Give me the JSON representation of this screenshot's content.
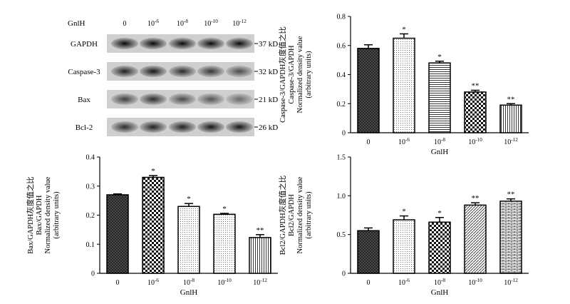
{
  "blot": {
    "header": "GnlH",
    "lanes": [
      "0",
      "10-6",
      "10-8",
      "10-10",
      "10-12"
    ],
    "rows": [
      {
        "protein": "GAPDH",
        "size": "37 kD",
        "intensity": [
          0.95,
          0.95,
          0.95,
          0.95,
          0.95
        ]
      },
      {
        "protein": "Caspase-3",
        "size": "32 kD",
        "intensity": [
          0.85,
          0.9,
          0.8,
          0.75,
          0.65
        ]
      },
      {
        "protein": "Bax",
        "size": "21 kD",
        "intensity": [
          0.7,
          0.8,
          0.65,
          0.6,
          0.5
        ]
      },
      {
        "protein": "Bcl-2",
        "size": "26 kD",
        "intensity": [
          0.8,
          0.85,
          0.85,
          0.9,
          0.9
        ]
      }
    ]
  },
  "chart_data": [
    {
      "type": "bar",
      "panel": "caspase3",
      "categories": [
        "0",
        "10-6",
        "10-8",
        "10-10",
        "10-12"
      ],
      "values": [
        0.58,
        0.65,
        0.48,
        0.28,
        0.19
      ],
      "errors": [
        0.025,
        0.03,
        0.012,
        0.012,
        0.01
      ],
      "significance": [
        "",
        "*",
        "*",
        "**",
        "**"
      ],
      "patterns": [
        "cross",
        "dots",
        "hlines",
        "checker",
        "vlines"
      ],
      "ylabel_lines": [
        "Caspase-3/GAPDH灰度值之比",
        "Caspase-3/GAPDH",
        "Normalized density value",
        "(arbitrary units)"
      ],
      "xlabel": "GnlH",
      "ylim": [
        0,
        0.8
      ],
      "yticks": [
        "0",
        "0.2",
        "0.4",
        "0.6",
        "0.8"
      ]
    },
    {
      "type": "bar",
      "panel": "bax",
      "categories": [
        "0",
        "10-6",
        "10-8",
        "10-10",
        "10-12"
      ],
      "values": [
        0.27,
        0.33,
        0.23,
        0.203,
        0.123
      ],
      "errors": [
        0.003,
        0.006,
        0.01,
        0.003,
        0.01
      ],
      "significance": [
        "",
        "*",
        "*",
        "*",
        "**"
      ],
      "patterns": [
        "cross",
        "checker",
        "dots",
        "dots",
        "vlines"
      ],
      "ylabel_lines": [
        "Bax/GAPDH灰度值之比",
        "Bax/GAPDH",
        "Normalized density value",
        "(arbitrary units)"
      ],
      "xlabel": "GnlH",
      "ylim": [
        0,
        0.4
      ],
      "yticks": [
        "0",
        "0.1",
        "0.2",
        "0.3",
        "0.4"
      ]
    },
    {
      "type": "bar",
      "panel": "bcl2",
      "categories": [
        "0",
        "10-6",
        "10-8",
        "10-10",
        "10-12"
      ],
      "values": [
        0.55,
        0.69,
        0.66,
        0.88,
        0.93
      ],
      "errors": [
        0.035,
        0.05,
        0.06,
        0.03,
        0.03
      ],
      "significance": [
        "",
        "*",
        "*",
        "**",
        "**"
      ],
      "patterns": [
        "cross",
        "dots",
        "checker",
        "diag",
        "bricks"
      ],
      "ylabel_lines": [
        "Bcl2/GAPDH灰度值之比",
        "Bcl2/GAPDH",
        "Normalized density value",
        "(arbitrary units)"
      ],
      "xlabel": "GnlH",
      "ylim": [
        0,
        1.5
      ],
      "yticks": [
        "0",
        "0.5",
        "1.0",
        "1.5"
      ]
    }
  ]
}
